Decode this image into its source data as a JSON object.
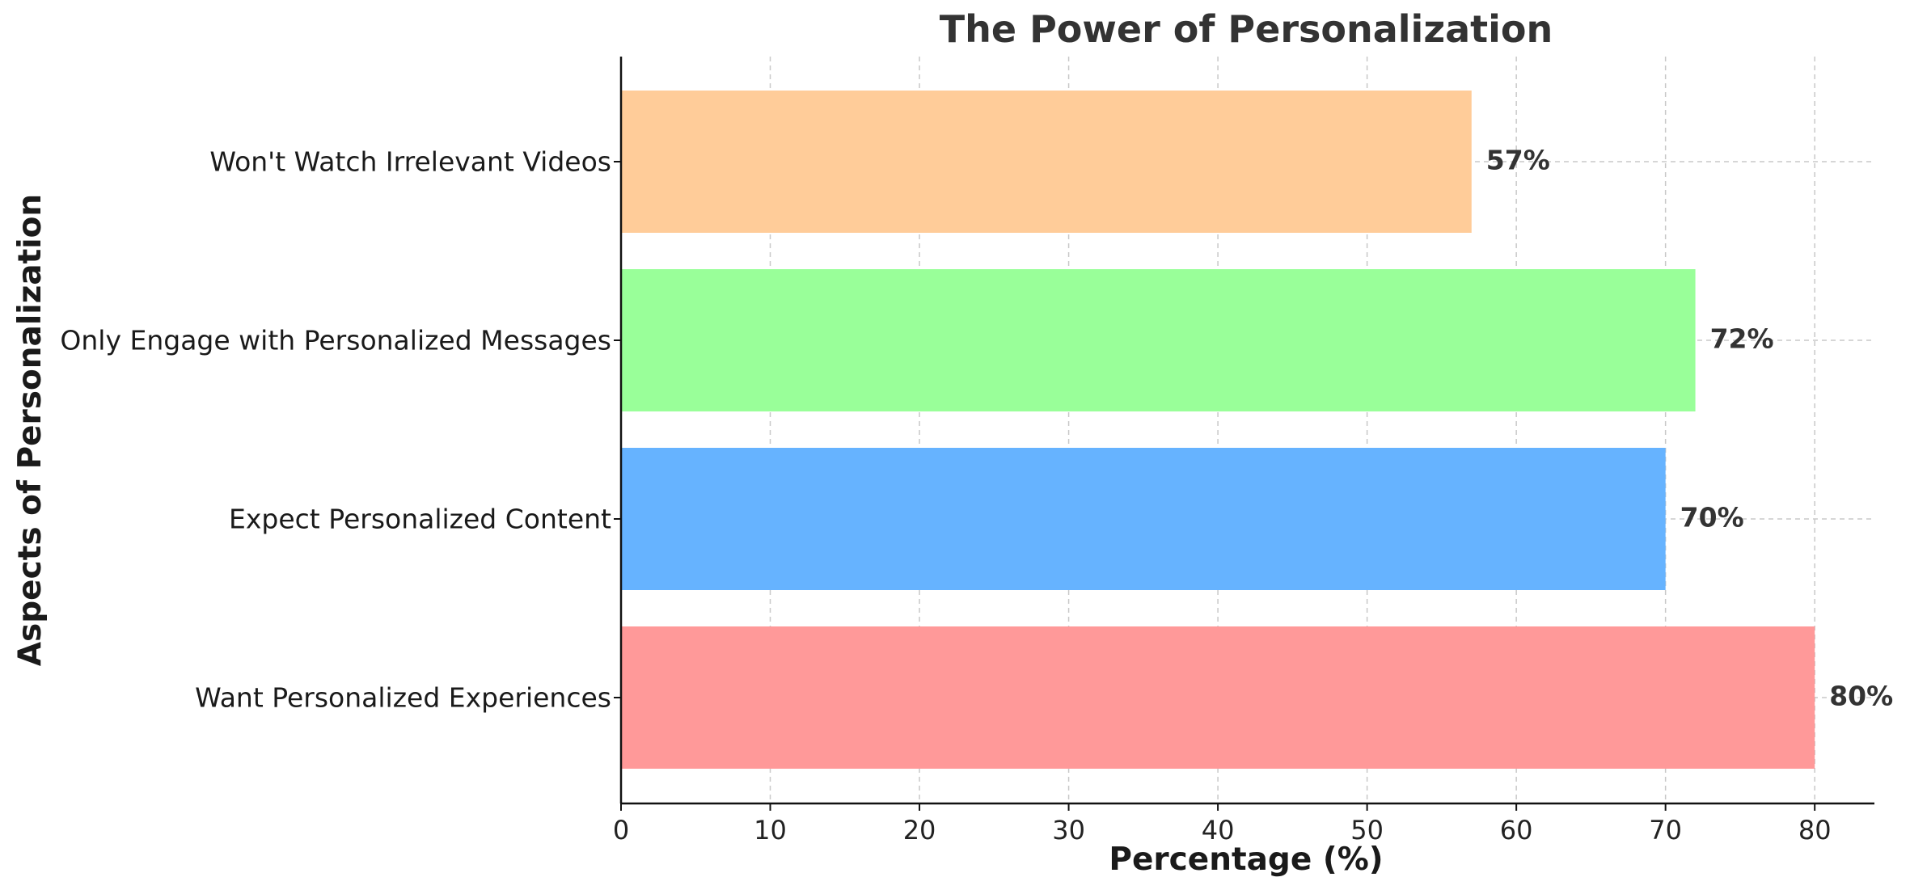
{
  "chart_data": {
    "type": "bar",
    "orientation": "horizontal",
    "title": "The Power of Personalization",
    "xlabel": "Percentage (%)",
    "ylabel": "Aspects of Personalization",
    "categories": [
      "Want Personalized Experiences",
      "Expect Personalized Content",
      "Only Engage with Personalized Messages",
      "Won't Watch Irrelevant Videos"
    ],
    "values": [
      80,
      70,
      72,
      57
    ],
    "value_labels": [
      "80%",
      "70%",
      "72%",
      "57%"
    ],
    "colors": [
      "#ff9999",
      "#66b3ff",
      "#99ff99",
      "#ffcc99"
    ],
    "xlim": [
      0,
      84
    ],
    "xticks": [
      0,
      10,
      20,
      30,
      40,
      50,
      60,
      70,
      80
    ],
    "grid": true
  }
}
